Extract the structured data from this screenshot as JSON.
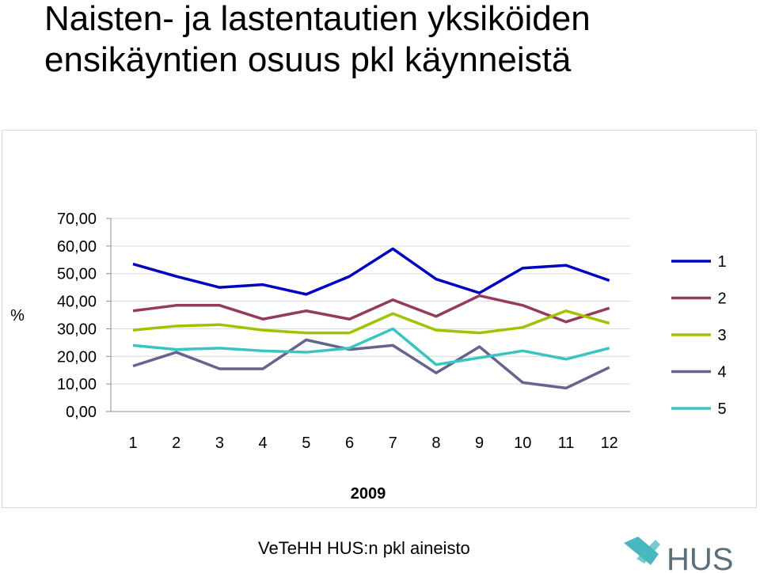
{
  "title": [
    "Naisten- ja lastentautien yksiköiden",
    "ensikäyntien osuus pkl käynneistä"
  ],
  "source": "VeTeHH HUS:n pkl aineisto",
  "logo": {
    "text": "HUS",
    "mark_color": "#49b7c0",
    "text_color": "#5a6e7c"
  },
  "chart_data": {
    "type": "line",
    "title": "",
    "xlabel": "2009",
    "ylabel": "%",
    "categories": [
      "1",
      "2",
      "3",
      "4",
      "5",
      "6",
      "7",
      "8",
      "9",
      "10",
      "11",
      "12"
    ],
    "ylim": [
      0,
      70
    ],
    "yticks": [
      "0,00",
      "10,00",
      "20,00",
      "30,00",
      "40,00",
      "50,00",
      "60,00",
      "70,00"
    ],
    "grid": true,
    "legend": "right",
    "series": [
      {
        "name": "1",
        "color": "#0000c0",
        "values": [
          53.5,
          49.0,
          45.0,
          46.0,
          42.5,
          49.0,
          59.0,
          48.0,
          43.0,
          52.0,
          53.0,
          47.5
        ]
      },
      {
        "name": "2",
        "color": "#953a5f",
        "values": [
          36.5,
          38.5,
          38.5,
          33.5,
          36.5,
          33.5,
          40.5,
          34.5,
          42.0,
          38.5,
          32.5,
          37.5
        ]
      },
      {
        "name": "3",
        "color": "#9ec400",
        "values": [
          29.5,
          31.0,
          31.5,
          29.5,
          28.5,
          28.5,
          35.5,
          29.5,
          28.5,
          30.5,
          36.5,
          32.0
        ]
      },
      {
        "name": "4",
        "color": "#65648f",
        "values": [
          16.5,
          21.5,
          15.5,
          15.5,
          26.0,
          22.5,
          24.0,
          14.0,
          23.5,
          10.5,
          8.5,
          16.0
        ]
      },
      {
        "name": "5",
        "color": "#38c4c0",
        "values": [
          24.0,
          22.5,
          23.0,
          22.0,
          21.5,
          23.0,
          30.0,
          17.0,
          19.5,
          22.0,
          19.0,
          23.0
        ]
      }
    ]
  }
}
